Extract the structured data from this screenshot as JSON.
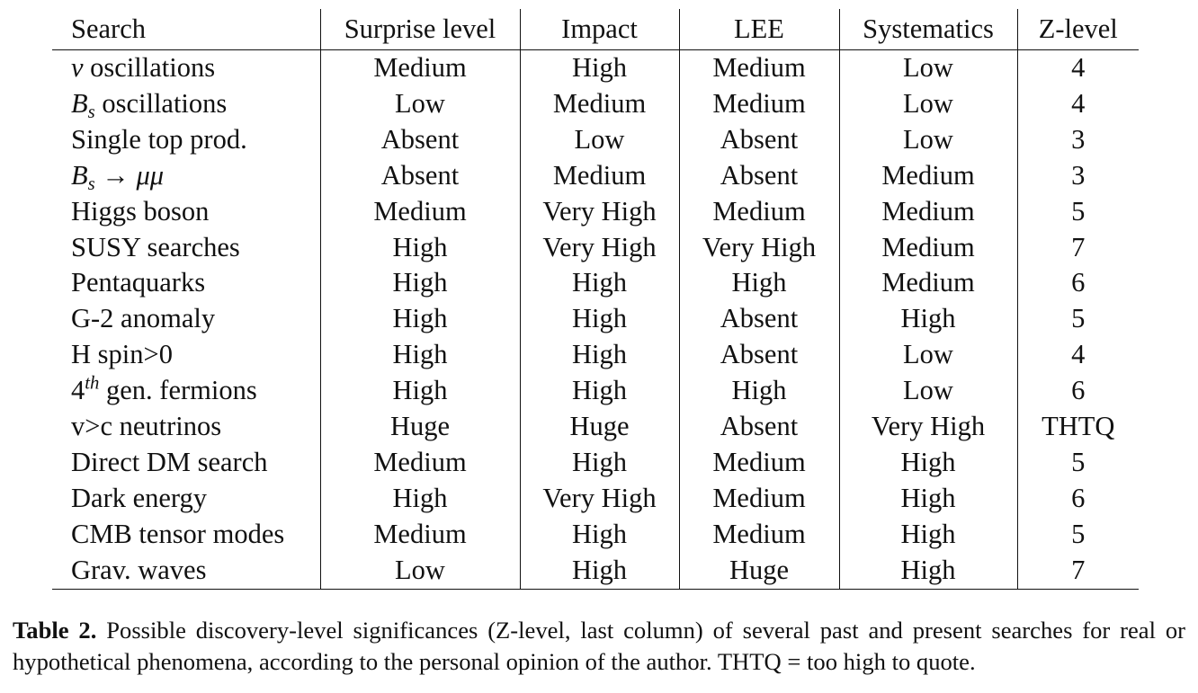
{
  "table": {
    "headers": [
      "Search",
      "Surprise level",
      "Impact",
      "LEE",
      "Systematics",
      "Z-level"
    ],
    "rows": [
      {
        "search_prefix": "ν",
        "search_sub": "",
        "search_sup": "",
        "search_text": " oscillations",
        "surprise": "Medium",
        "impact": "High",
        "lee": "Medium",
        "systematics": "Low",
        "z": "4"
      },
      {
        "search_prefix": "B",
        "search_sub": "s",
        "search_sup": "",
        "search_text": " oscillations",
        "surprise": "Low",
        "impact": "Medium",
        "lee": "Medium",
        "systematics": "Low",
        "z": "4"
      },
      {
        "search_prefix": "",
        "search_sub": "",
        "search_sup": "",
        "search_text": "Single top prod.",
        "surprise": "Absent",
        "impact": "Low",
        "lee": "Absent",
        "systematics": "Low",
        "z": "3"
      },
      {
        "search_prefix": "B",
        "search_sub": "s",
        "search_sup": "",
        "search_text": " → μμ",
        "surprise": "Absent",
        "impact": "Medium",
        "lee": "Absent",
        "systematics": "Medium",
        "z": "3"
      },
      {
        "search_prefix": "",
        "search_sub": "",
        "search_sup": "",
        "search_text": "Higgs boson",
        "surprise": "Medium",
        "impact": "Very High",
        "lee": "Medium",
        "systematics": "Medium",
        "z": "5"
      },
      {
        "search_prefix": "",
        "search_sub": "",
        "search_sup": "",
        "search_text": "SUSY searches",
        "surprise": "High",
        "impact": "Very High",
        "lee": "Very High",
        "systematics": "Medium",
        "z": "7"
      },
      {
        "search_prefix": "",
        "search_sub": "",
        "search_sup": "",
        "search_text": "Pentaquarks",
        "surprise": "High",
        "impact": "High",
        "lee": "High",
        "systematics": "Medium",
        "z": "6"
      },
      {
        "search_prefix": "",
        "search_sub": "",
        "search_sup": "",
        "search_text": "G-2 anomaly",
        "surprise": "High",
        "impact": "High",
        "lee": "Absent",
        "systematics": "High",
        "z": "5"
      },
      {
        "search_prefix": "",
        "search_sub": "",
        "search_sup": "",
        "search_text": "H spin>0",
        "surprise": "High",
        "impact": "High",
        "lee": "Absent",
        "systematics": "Low",
        "z": "4"
      },
      {
        "search_prefix": "4",
        "search_sub": "",
        "search_sup": "th",
        "search_text": " gen. fermions",
        "surprise": "High",
        "impact": "High",
        "lee": "High",
        "systematics": "Low",
        "z": "6"
      },
      {
        "search_prefix": "",
        "search_sub": "",
        "search_sup": "",
        "search_text": "v>c neutrinos",
        "surprise": "Huge",
        "impact": "Huge",
        "lee": "Absent",
        "systematics": "Very High",
        "z": "THTQ"
      },
      {
        "search_prefix": "",
        "search_sub": "",
        "search_sup": "",
        "search_text": "Direct DM search",
        "surprise": "Medium",
        "impact": "High",
        "lee": "Medium",
        "systematics": "High",
        "z": "5"
      },
      {
        "search_prefix": "",
        "search_sub": "",
        "search_sup": "",
        "search_text": "Dark energy",
        "surprise": "High",
        "impact": "Very High",
        "lee": "Medium",
        "systematics": "High",
        "z": "6"
      },
      {
        "search_prefix": "",
        "search_sub": "",
        "search_sup": "",
        "search_text": "CMB tensor modes",
        "surprise": "Medium",
        "impact": "High",
        "lee": "Medium",
        "systematics": "High",
        "z": "5"
      },
      {
        "search_prefix": "",
        "search_sub": "",
        "search_sup": "",
        "search_text": "Grav. waves",
        "surprise": "Low",
        "impact": "High",
        "lee": "Huge",
        "systematics": "High",
        "z": "7"
      }
    ]
  },
  "caption": {
    "label": "Table 2.",
    "text": " Possible discovery-level significances (Z-level, last column) of several past and present searches for real or hypothetical phenomena, according to the personal opinion of the author. THTQ = too high to quote."
  }
}
